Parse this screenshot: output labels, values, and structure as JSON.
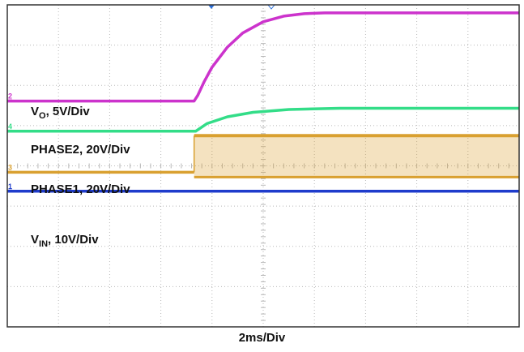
{
  "chart_data": {
    "type": "line",
    "time_unit": "div",
    "x_range": [
      0,
      10
    ],
    "y_range": [
      0,
      8
    ],
    "grid": true,
    "series": [
      {
        "name": "VO",
        "label_main": "V",
        "label_sub": "O",
        "label_rest": ", 5V/Div",
        "color": "#cc33cc",
        "channel_marker": "2",
        "x": [
          0,
          3.65,
          3.72,
          3.85,
          4.0,
          4.3,
          4.6,
          5.0,
          5.4,
          5.8,
          6.2,
          10
        ],
        "y": [
          5.61,
          5.61,
          5.75,
          6.1,
          6.45,
          6.95,
          7.3,
          7.58,
          7.72,
          7.78,
          7.8,
          7.8
        ]
      },
      {
        "name": "PHASE2",
        "label_main": "PHASE2, 20V/Div",
        "label_sub": "",
        "label_rest": "",
        "color": "#33dd88",
        "channel_marker": "4",
        "x": [
          0,
          3.68,
          3.9,
          4.3,
          4.8,
          5.5,
          6.5,
          10
        ],
        "y": [
          4.86,
          4.86,
          5.05,
          5.22,
          5.33,
          5.4,
          5.43,
          5.43
        ]
      },
      {
        "name": "PHASE1",
        "label_main": "PHASE1, 20V/Div",
        "label_sub": "",
        "label_rest": "",
        "color": "#d9a030",
        "channel_marker": "3",
        "switching_start": 3.65,
        "switching_low": 3.72,
        "switching_high": 4.75,
        "x": [
          0,
          3.65
        ],
        "y": [
          3.84,
          3.84
        ]
      },
      {
        "name": "VIN",
        "label_main": "V",
        "label_sub": "IN",
        "label_rest": ", 10V/Div",
        "color": "#1f3ccc",
        "channel_marker": "1",
        "x": [
          0,
          10
        ],
        "y": [
          3.37,
          3.37
        ]
      }
    ],
    "timebase_label": "2ms/Div"
  }
}
